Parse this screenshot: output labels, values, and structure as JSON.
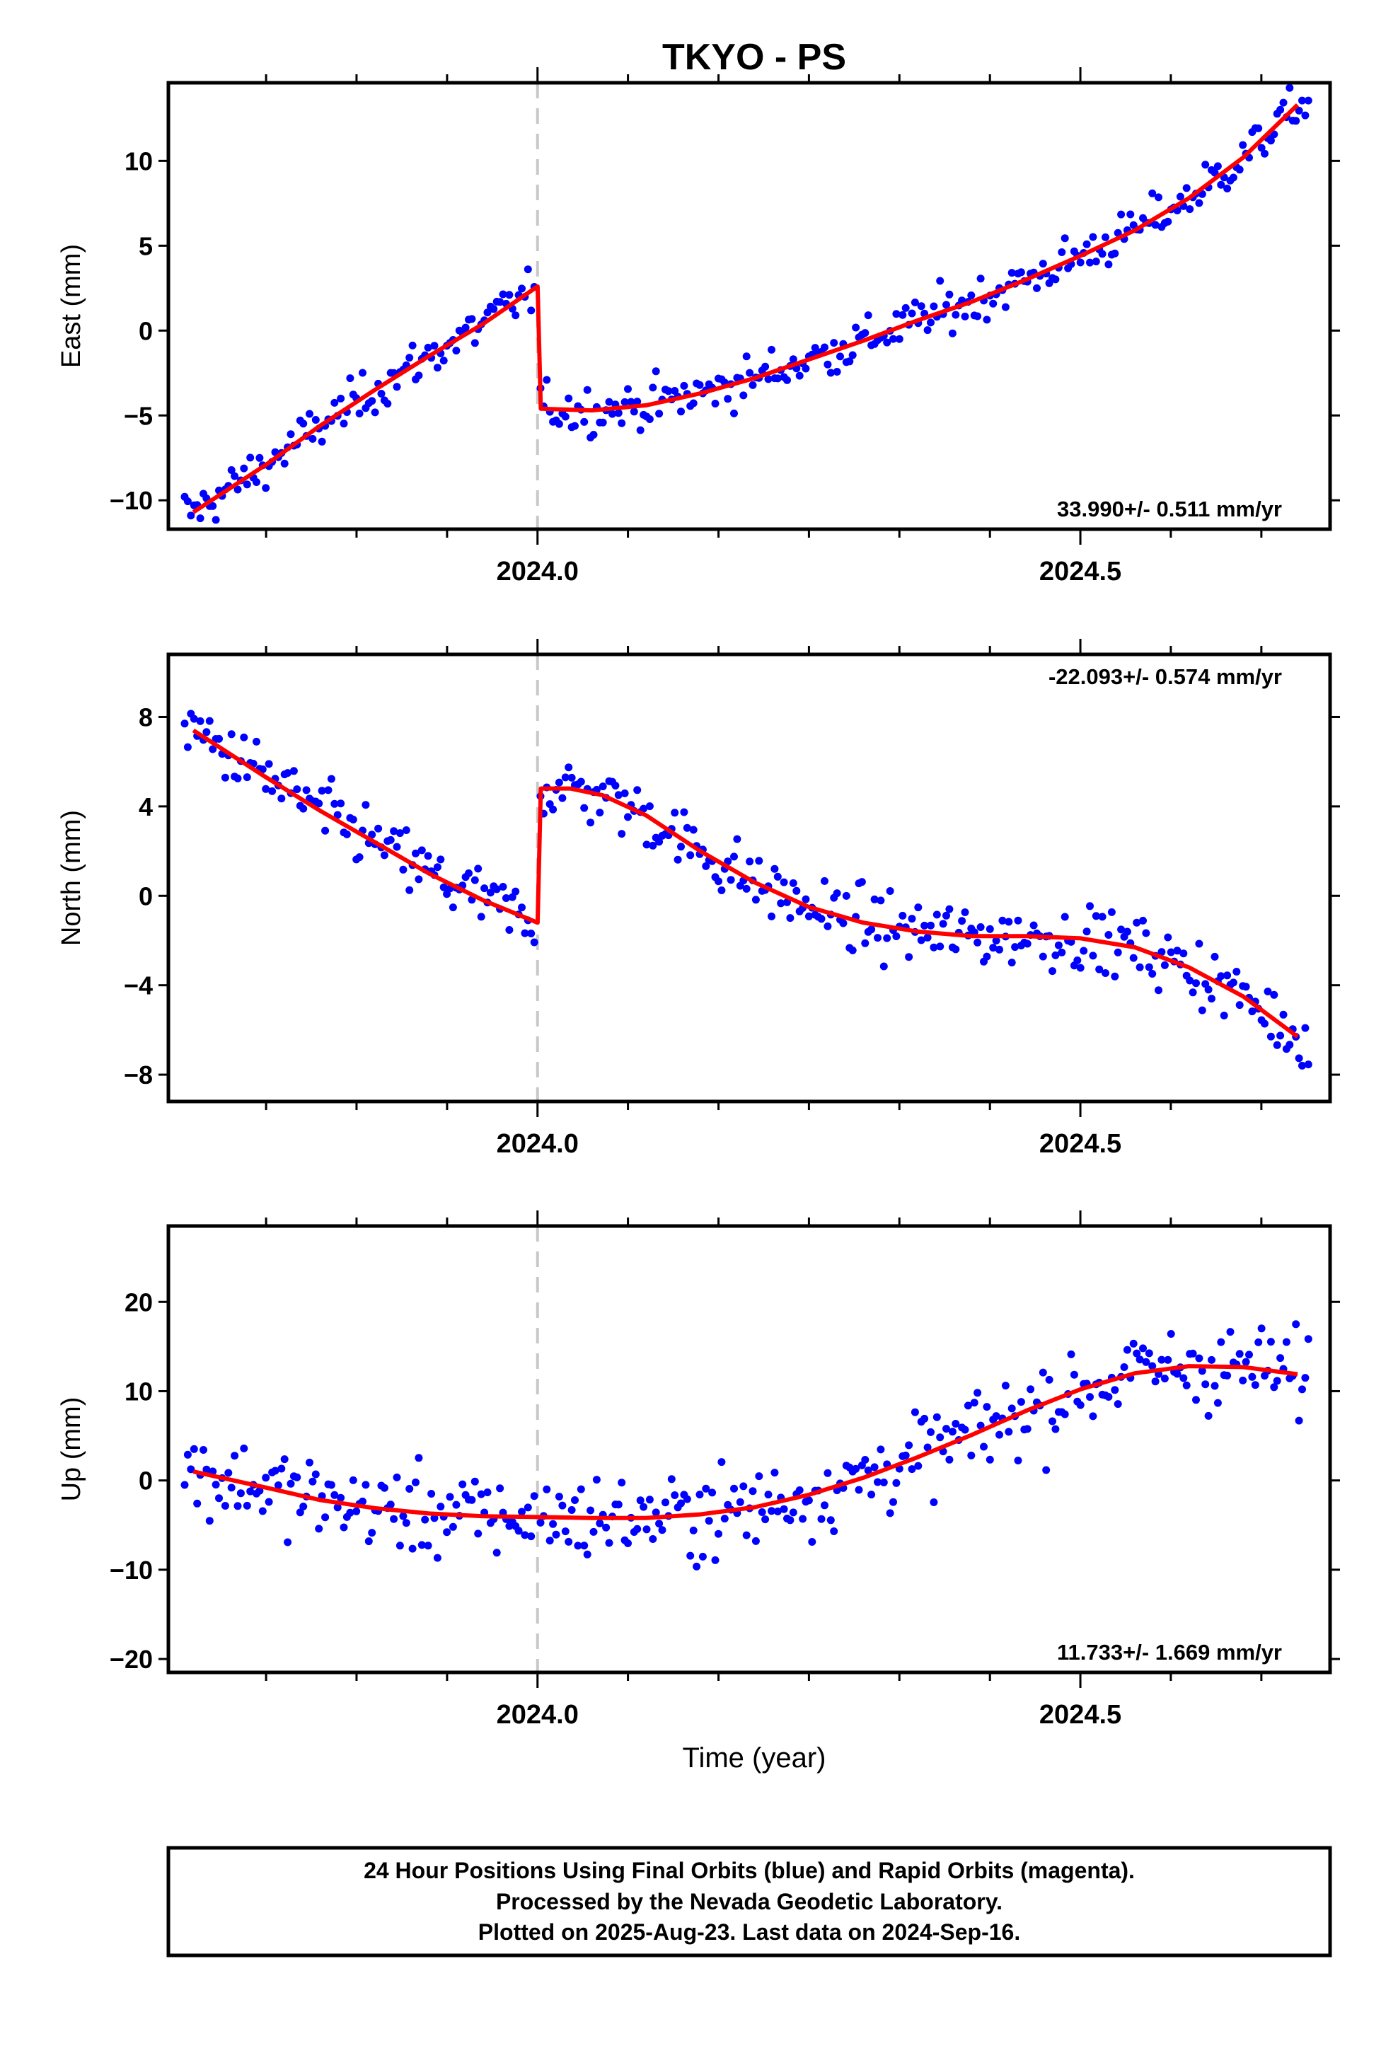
{
  "figure": {
    "title": "TKYO - PS",
    "xlabel": "Time (year)",
    "caption_lines": [
      "24 Hour Positions Using Final Orbits (blue) and Rapid Orbits (magenta).",
      "Processed by the Nevada Geodetic Laboratory.",
      "Plotted on 2025-Aug-23. Last data on 2024-Sep-16."
    ],
    "colors": {
      "data_points": "#0000ff",
      "model_fit": "#ff0000",
      "event_line": "#c8c8c8",
      "frame": "#000000"
    }
  },
  "chart_data": [
    {
      "type": "scatter",
      "panel": "east",
      "ylabel": "East (mm)",
      "ylim": [
        -11.7,
        14.6
      ],
      "yticks": [
        -10,
        -5,
        0,
        5,
        10
      ],
      "xlim": [
        2023.66,
        2024.73
      ],
      "xticks": [
        2024.0,
        2024.5
      ],
      "xtick_labels": [
        "2024.0",
        "2024.5"
      ],
      "minor_xticks": [
        2023.75,
        2023.8333,
        2023.9167,
        2024.0833,
        2024.1667,
        2024.25,
        2024.3333,
        2024.4167,
        2024.5833,
        2024.6667
      ],
      "event_line_x": 2024.0,
      "rate_label": "33.990+/- 0.511 mm/yr",
      "rate_label_position": "bottom-right",
      "grid": false,
      "fit_x": [
        2023.683,
        2023.75,
        2023.8,
        2023.85,
        2023.9,
        2023.95,
        2024.0,
        2024.0001,
        2024.003,
        2024.05,
        2024.1,
        2024.15,
        2024.2,
        2024.25,
        2024.3,
        2024.35,
        2024.4,
        2024.45,
        2024.5,
        2024.55,
        2024.6,
        2024.65,
        2024.7
      ],
      "fit_y": [
        -10.7,
        -7.9,
        -5.6,
        -3.5,
        -1.5,
        0.4,
        2.6,
        2.6,
        -4.6,
        -4.7,
        -4.4,
        -3.7,
        -2.8,
        -1.7,
        -0.6,
        0.6,
        1.7,
        3.0,
        4.4,
        5.9,
        7.8,
        10.2,
        13.3
      ]
    },
    {
      "type": "scatter",
      "panel": "north",
      "ylabel": "North (mm)",
      "ylim": [
        -9.2,
        10.8
      ],
      "yticks": [
        -8,
        -4,
        0,
        4,
        8
      ],
      "xlim": [
        2023.66,
        2024.73
      ],
      "xticks": [
        2024.0,
        2024.5
      ],
      "xtick_labels": [
        "2024.0",
        "2024.5"
      ],
      "minor_xticks": [
        2023.75,
        2023.8333,
        2023.9167,
        2024.0833,
        2024.1667,
        2024.25,
        2024.3333,
        2024.4167,
        2024.5833,
        2024.6667
      ],
      "event_line_x": 2024.0,
      "rate_label": "-22.093+/- 0.574 mm/yr",
      "rate_label_position": "top-right",
      "grid": false,
      "fit_x": [
        2023.683,
        2023.75,
        2023.8,
        2023.85,
        2023.9,
        2023.95,
        2024.0,
        2024.0001,
        2024.003,
        2024.03,
        2024.06,
        2024.1,
        2024.15,
        2024.2,
        2024.25,
        2024.3,
        2024.35,
        2024.4,
        2024.45,
        2024.5,
        2024.55,
        2024.6,
        2024.65,
        2024.7
      ],
      "fit_y": [
        7.4,
        5.3,
        3.8,
        2.4,
        1.0,
        -0.2,
        -1.2,
        -1.2,
        4.8,
        4.8,
        4.5,
        3.6,
        2.0,
        0.6,
        -0.5,
        -1.2,
        -1.6,
        -1.8,
        -1.8,
        -1.9,
        -2.3,
        -3.2,
        -4.5,
        -6.3
      ]
    },
    {
      "type": "scatter",
      "panel": "up",
      "ylabel": "Up (mm)",
      "ylim": [
        -21.5,
        28.5
      ],
      "yticks": [
        -20,
        -10,
        0,
        10,
        20
      ],
      "xlim": [
        2023.66,
        2024.73
      ],
      "xticks": [
        2024.0,
        2024.5
      ],
      "xtick_labels": [
        "2024.0",
        "2024.5"
      ],
      "minor_xticks": [
        2023.75,
        2023.8333,
        2023.9167,
        2024.0833,
        2024.1667,
        2024.25,
        2024.3333,
        2024.4167,
        2024.5833,
        2024.6667
      ],
      "event_line_x": 2024.0,
      "rate_label": "11.733+/- 1.669 mm/yr",
      "rate_label_position": "bottom-right",
      "grid": false,
      "fit_x": [
        2023.683,
        2023.75,
        2023.8,
        2023.85,
        2023.9,
        2023.95,
        2024.0,
        2024.05,
        2024.1,
        2024.15,
        2024.2,
        2024.25,
        2024.3,
        2024.35,
        2024.4,
        2024.45,
        2024.5,
        2024.55,
        2024.6,
        2024.65,
        2024.7
      ],
      "fit_y": [
        1.0,
        -0.8,
        -2.2,
        -3.1,
        -3.7,
        -4.0,
        -4.1,
        -4.2,
        -4.2,
        -3.8,
        -3.0,
        -1.6,
        0.3,
        2.6,
        5.1,
        7.8,
        10.2,
        12.0,
        12.8,
        12.7,
        11.9
      ]
    }
  ]
}
